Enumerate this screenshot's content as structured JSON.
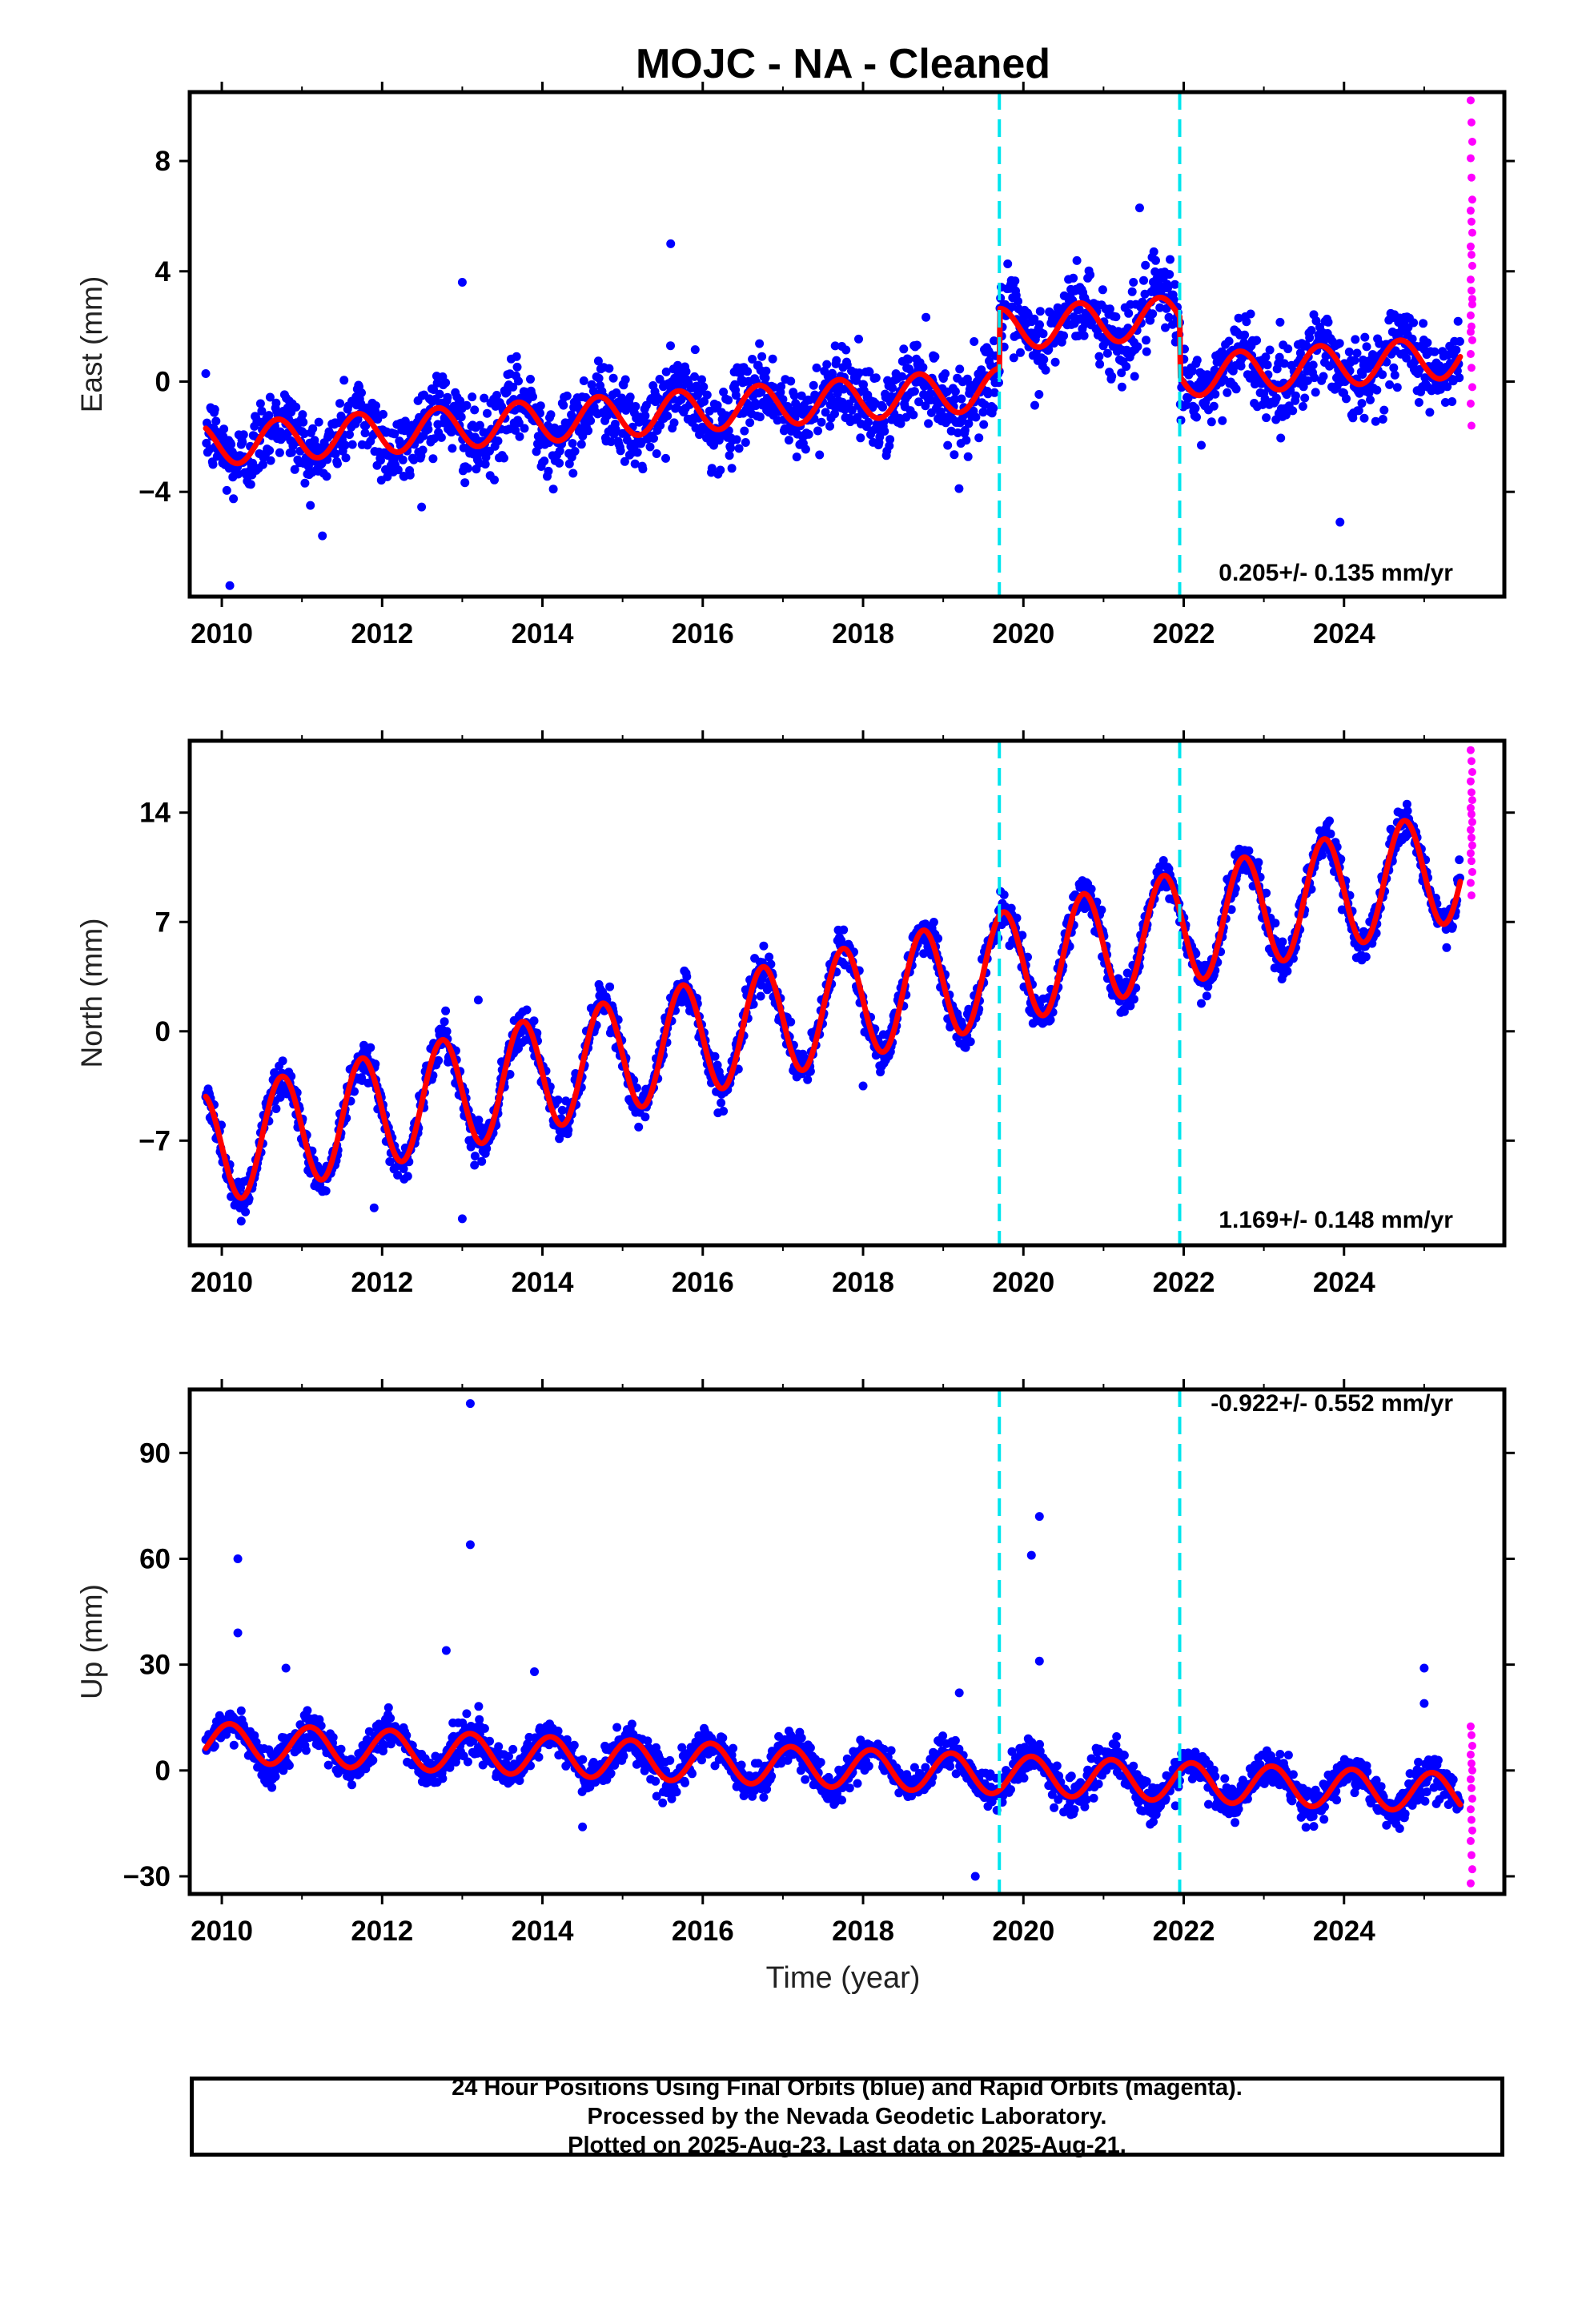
{
  "title": "MOJC  - NA - Cleaned",
  "x_axis_label": "Time (year)",
  "footer": {
    "line1": "24 Hour Positions Using Final Orbits (blue) and Rapid Orbits (magenta).",
    "line2": "Processed by the Nevada Geodetic Laboratory.",
    "line3": "Plotted on 2025-Aug-23. Last data on 2025-Aug-21."
  },
  "colors": {
    "final_orbits": "#0000ff",
    "rapid_orbits": "#ff00ff",
    "model_fit": "#ff0000",
    "offset_lines": "#00e5ee"
  },
  "chart_data": [
    {
      "type": "scatter",
      "component": "east",
      "ylabel": "East (mm)",
      "rate_text": "0.205+/- 0.135 mm/yr",
      "xlim": [
        2009.6,
        2026.0
      ],
      "ylim": [
        -7.8,
        10.5
      ],
      "xticks": [
        2010,
        2012,
        2014,
        2016,
        2018,
        2020,
        2022,
        2024
      ],
      "xtick_labels": [
        "2010",
        "2012",
        "2014",
        "2016",
        "2018",
        "2020",
        "2022",
        "2024"
      ],
      "yticks": [
        -4,
        0,
        4,
        8
      ],
      "ytick_labels": [
        "−4",
        "0",
        "4",
        "8"
      ],
      "offset_epochs": [
        2019.7,
        2021.95
      ],
      "data_span": [
        2009.8,
        2025.45
      ],
      "fit_segments": [
        {
          "start": 2009.8,
          "end": 2019.7,
          "intercept": -2.3,
          "rate": 0.205,
          "amplitude": 0.75,
          "phase": 0.45
        },
        {
          "start": 2019.7,
          "end": 2021.95,
          "intercept": 1.9,
          "rate": 0.2,
          "amplitude": 0.75,
          "phase": 0.45
        },
        {
          "start": 2021.95,
          "end": 2025.45,
          "intercept": 0.2,
          "rate": 0.2,
          "amplitude": 0.75,
          "phase": 0.45
        }
      ],
      "scatter_spread": 1.3,
      "rapid_points": [
        10.2,
        9.4,
        8.7,
        8.1,
        7.4,
        6.6,
        6.2,
        5.8,
        5.4,
        4.9,
        4.6,
        4.2,
        3.7,
        3.3,
        2.8,
        2.4,
        2.0,
        1.5,
        1.0,
        0.5,
        -0.2,
        -0.8,
        -1.6,
        3.0,
        1.8
      ],
      "outliers": [
        [
          2010.1,
          -7.4
        ],
        [
          2015.6,
          5.0
        ],
        [
          2021.45,
          6.3
        ],
        [
          2023.95,
          -5.1
        ],
        [
          2013.0,
          3.6
        ]
      ]
    },
    {
      "type": "scatter",
      "component": "north",
      "ylabel": "North (mm)",
      "rate_text": "1.169+/- 0.148 mm/yr",
      "xlim": [
        2009.6,
        2026.0
      ],
      "ylim": [
        -13.7,
        18.6
      ],
      "xticks": [
        2010,
        2012,
        2014,
        2016,
        2018,
        2020,
        2022,
        2024
      ],
      "xtick_labels": [
        "2010",
        "2012",
        "2014",
        "2016",
        "2018",
        "2020",
        "2022",
        "2024"
      ],
      "yticks": [
        -7,
        0,
        7,
        14
      ],
      "ytick_labels": [
        "−7",
        "0",
        "7",
        "14"
      ],
      "offset_epochs": [
        2019.7,
        2021.95
      ],
      "data_span": [
        2009.8,
        2025.45
      ],
      "fit_segments": [
        {
          "start": 2009.8,
          "end": 2025.45,
          "intercept": -7.6,
          "rate": 1.169,
          "amplitude": 3.6,
          "phase": 0.5
        }
      ],
      "scatter_spread": 1.1,
      "rapid_points": [
        18.0,
        17.3,
        16.6,
        16.0,
        15.3,
        14.8,
        14.3,
        13.9,
        13.4,
        12.9,
        12.4,
        11.9,
        11.4,
        10.9,
        10.2,
        9.5,
        8.7
      ],
      "outliers": [
        [
          2013.2,
          2.0
        ],
        [
          2011.9,
          -11.3
        ],
        [
          2013.0,
          -12.0
        ],
        [
          2018.0,
          -3.5
        ]
      ]
    },
    {
      "type": "scatter",
      "component": "up",
      "ylabel": "Up (mm)",
      "rate_text": "-0.922+/- 0.552 mm/yr",
      "xlim": [
        2009.6,
        2026.0
      ],
      "ylim": [
        -35,
        108
      ],
      "xticks": [
        2010,
        2012,
        2014,
        2016,
        2018,
        2020,
        2022,
        2024
      ],
      "xtick_labels": [
        "2010",
        "2012",
        "2014",
        "2016",
        "2018",
        "2020",
        "2022",
        "2024"
      ],
      "yticks": [
        -30,
        0,
        30,
        60,
        90
      ],
      "ytick_labels": [
        "−30",
        "0",
        "30",
        "60",
        "90"
      ],
      "offset_epochs": [
        2019.7,
        2021.95
      ],
      "data_span": [
        2009.8,
        2025.45
      ],
      "fit_segments": [
        {
          "start": 2009.8,
          "end": 2025.45,
          "intercept": 8.0,
          "rate": -0.922,
          "amplitude": 5.5,
          "phase": 0.85
        }
      ],
      "scatter_spread": 4.5,
      "rapid_points": [
        12.5,
        10.0,
        7.0,
        4.5,
        2.0,
        0.0,
        -2.5,
        -5.0,
        -8.0,
        -11.0,
        -14.0,
        -17.0,
        -20.0,
        -24.0,
        -28.0,
        -32.0
      ],
      "outliers": [
        [
          2013.1,
          104.0
        ],
        [
          2013.1,
          64.0
        ],
        [
          2010.2,
          60.0
        ],
        [
          2010.2,
          39.0
        ],
        [
          2020.2,
          72.0
        ],
        [
          2020.1,
          61.0
        ],
        [
          2020.2,
          31.0
        ],
        [
          2025.0,
          29.0
        ],
        [
          2025.0,
          19.0
        ],
        [
          2019.4,
          -30.0
        ],
        [
          2012.8,
          34.0
        ],
        [
          2010.8,
          29.0
        ],
        [
          2014.5,
          -16.0
        ],
        [
          2019.2,
          22.0
        ],
        [
          2013.9,
          28.0
        ]
      ]
    }
  ]
}
